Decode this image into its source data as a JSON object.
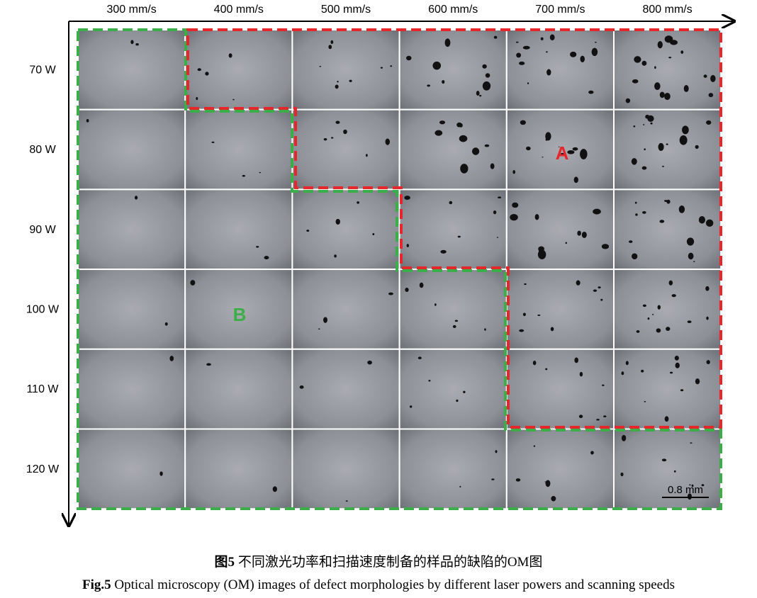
{
  "figure": {
    "columns": [
      "300 mm/s",
      "400 mm/s",
      "500 mm/s",
      "600 mm/s",
      "700 mm/s",
      "800 mm/s"
    ],
    "rows": [
      "70 W",
      "80 W",
      "90 W",
      "100 W",
      "110 W",
      "120 W"
    ],
    "region_labels": [
      "A",
      "B"
    ],
    "scale_bar": "0.8 mm",
    "caption_zh": {
      "label": "图5",
      "text": "不同激光功率和扫描速度制备的样品的缺陷的OM图"
    },
    "caption_en": {
      "label": "Fig.5",
      "text": "Optical microscopy (OM) images of defect morphologies by different laser powers and scanning speeds"
    }
  }
}
